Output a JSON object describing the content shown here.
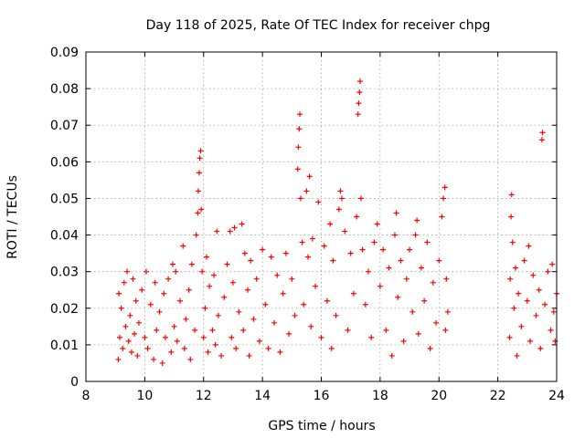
{
  "chart_data": {
    "type": "scatter",
    "title": "Day 118 of 2025, Rate Of TEC Index for receiver chpg",
    "xlabel": "GPS time / hours",
    "ylabel": "ROTI / TECUs",
    "xlim": [
      8,
      24
    ],
    "ylim": [
      0,
      0.09
    ],
    "xticks": [
      8,
      10,
      12,
      14,
      16,
      18,
      20,
      22,
      24
    ],
    "yticks": [
      0,
      0.01,
      0.02,
      0.03,
      0.04,
      0.05,
      0.06,
      0.07,
      0.08,
      0.09
    ],
    "ytick_labels": [
      "0",
      "0.01",
      "0.02",
      "0.03",
      "0.04",
      "0.05",
      "0.06",
      "0.07",
      "0.08",
      "0.09"
    ],
    "grid": true,
    "marker": "+",
    "color": "#ff0000",
    "data_gaps_hours": [
      [
        20.3,
        22.35
      ]
    ],
    "series": [
      {
        "points": [
          [
            9.1,
            0.006
          ],
          [
            9.12,
            0.024
          ],
          [
            9.15,
            0.012
          ],
          [
            9.2,
            0.02
          ],
          [
            9.25,
            0.009
          ],
          [
            9.3,
            0.027
          ],
          [
            9.35,
            0.015
          ],
          [
            9.4,
            0.03
          ],
          [
            9.45,
            0.011
          ],
          [
            9.5,
            0.018
          ],
          [
            9.55,
            0.008
          ],
          [
            9.6,
            0.028
          ],
          [
            9.65,
            0.013
          ],
          [
            9.7,
            0.022
          ],
          [
            9.75,
            0.007
          ],
          [
            9.8,
            0.016
          ],
          [
            9.9,
            0.025
          ],
          [
            10.0,
            0.012
          ],
          [
            10.05,
            0.03
          ],
          [
            10.1,
            0.009
          ],
          [
            10.2,
            0.021
          ],
          [
            10.3,
            0.006
          ],
          [
            10.35,
            0.027
          ],
          [
            10.4,
            0.014
          ],
          [
            10.5,
            0.019
          ],
          [
            10.6,
            0.005
          ],
          [
            10.65,
            0.024
          ],
          [
            10.7,
            0.012
          ],
          [
            10.8,
            0.028
          ],
          [
            10.9,
            0.008
          ],
          [
            10.95,
            0.032
          ],
          [
            11.0,
            0.015
          ],
          [
            11.05,
            0.03
          ],
          [
            11.1,
            0.011
          ],
          [
            11.2,
            0.022
          ],
          [
            11.3,
            0.037
          ],
          [
            11.35,
            0.009
          ],
          [
            11.4,
            0.017
          ],
          [
            11.5,
            0.025
          ],
          [
            11.55,
            0.006
          ],
          [
            11.6,
            0.032
          ],
          [
            11.7,
            0.014
          ],
          [
            11.75,
            0.04
          ],
          [
            11.8,
            0.046
          ],
          [
            11.82,
            0.052
          ],
          [
            11.85,
            0.057
          ],
          [
            11.87,
            0.061
          ],
          [
            11.9,
            0.063
          ],
          [
            11.92,
            0.047
          ],
          [
            11.95,
            0.03
          ],
          [
            12.0,
            0.012
          ],
          [
            12.05,
            0.02
          ],
          [
            12.1,
            0.034
          ],
          [
            12.15,
            0.008
          ],
          [
            12.2,
            0.026
          ],
          [
            12.3,
            0.014
          ],
          [
            12.35,
            0.029
          ],
          [
            12.4,
            0.01
          ],
          [
            12.45,
            0.041
          ],
          [
            12.5,
            0.018
          ],
          [
            12.6,
            0.007
          ],
          [
            12.7,
            0.023
          ],
          [
            12.8,
            0.032
          ],
          [
            12.9,
            0.041
          ],
          [
            12.95,
            0.012
          ],
          [
            13.0,
            0.027
          ],
          [
            13.05,
            0.042
          ],
          [
            13.1,
            0.009
          ],
          [
            13.2,
            0.019
          ],
          [
            13.3,
            0.043
          ],
          [
            13.35,
            0.014
          ],
          [
            13.4,
            0.035
          ],
          [
            13.5,
            0.025
          ],
          [
            13.55,
            0.007
          ],
          [
            13.6,
            0.033
          ],
          [
            13.7,
            0.017
          ],
          [
            13.8,
            0.028
          ],
          [
            13.9,
            0.011
          ],
          [
            14.0,
            0.036
          ],
          [
            14.1,
            0.021
          ],
          [
            14.2,
            0.009
          ],
          [
            14.3,
            0.034
          ],
          [
            14.4,
            0.016
          ],
          [
            14.5,
            0.029
          ],
          [
            14.6,
            0.008
          ],
          [
            14.7,
            0.024
          ],
          [
            14.8,
            0.035
          ],
          [
            14.9,
            0.013
          ],
          [
            15.0,
            0.028
          ],
          [
            15.1,
            0.018
          ],
          [
            15.2,
            0.058
          ],
          [
            15.22,
            0.064
          ],
          [
            15.25,
            0.069
          ],
          [
            15.27,
            0.073
          ],
          [
            15.3,
            0.05
          ],
          [
            15.35,
            0.038
          ],
          [
            15.4,
            0.021
          ],
          [
            15.5,
            0.052
          ],
          [
            15.55,
            0.034
          ],
          [
            15.6,
            0.056
          ],
          [
            15.65,
            0.015
          ],
          [
            15.7,
            0.039
          ],
          [
            15.8,
            0.026
          ],
          [
            15.9,
            0.049
          ],
          [
            16.0,
            0.012
          ],
          [
            16.1,
            0.037
          ],
          [
            16.2,
            0.022
          ],
          [
            16.3,
            0.043
          ],
          [
            16.35,
            0.009
          ],
          [
            16.4,
            0.033
          ],
          [
            16.5,
            0.018
          ],
          [
            16.6,
            0.047
          ],
          [
            16.65,
            0.052
          ],
          [
            16.7,
            0.05
          ],
          [
            16.8,
            0.041
          ],
          [
            16.9,
            0.014
          ],
          [
            17.0,
            0.035
          ],
          [
            17.1,
            0.024
          ],
          [
            17.2,
            0.045
          ],
          [
            17.25,
            0.073
          ],
          [
            17.27,
            0.076
          ],
          [
            17.3,
            0.079
          ],
          [
            17.32,
            0.082
          ],
          [
            17.35,
            0.05
          ],
          [
            17.4,
            0.036
          ],
          [
            17.5,
            0.021
          ],
          [
            17.6,
            0.03
          ],
          [
            17.7,
            0.012
          ],
          [
            17.8,
            0.038
          ],
          [
            17.9,
            0.043
          ],
          [
            18.0,
            0.026
          ],
          [
            18.1,
            0.036
          ],
          [
            18.2,
            0.014
          ],
          [
            18.3,
            0.031
          ],
          [
            18.4,
            0.007
          ],
          [
            18.5,
            0.04
          ],
          [
            18.55,
            0.046
          ],
          [
            18.6,
            0.023
          ],
          [
            18.7,
            0.033
          ],
          [
            18.8,
            0.011
          ],
          [
            18.9,
            0.028
          ],
          [
            19.0,
            0.036
          ],
          [
            19.1,
            0.019
          ],
          [
            19.2,
            0.04
          ],
          [
            19.25,
            0.044
          ],
          [
            19.3,
            0.013
          ],
          [
            19.4,
            0.031
          ],
          [
            19.5,
            0.022
          ],
          [
            19.6,
            0.038
          ],
          [
            19.7,
            0.009
          ],
          [
            19.8,
            0.027
          ],
          [
            19.9,
            0.016
          ],
          [
            20.0,
            0.033
          ],
          [
            20.1,
            0.045
          ],
          [
            20.15,
            0.05
          ],
          [
            20.2,
            0.053
          ],
          [
            20.22,
            0.014
          ],
          [
            20.25,
            0.028
          ],
          [
            20.3,
            0.019
          ],
          [
            22.4,
            0.012
          ],
          [
            22.42,
            0.028
          ],
          [
            22.45,
            0.045
          ],
          [
            22.47,
            0.051
          ],
          [
            22.5,
            0.038
          ],
          [
            22.55,
            0.02
          ],
          [
            22.6,
            0.031
          ],
          [
            22.65,
            0.007
          ],
          [
            22.7,
            0.024
          ],
          [
            22.8,
            0.015
          ],
          [
            22.9,
            0.033
          ],
          [
            23.0,
            0.022
          ],
          [
            23.05,
            0.037
          ],
          [
            23.1,
            0.011
          ],
          [
            23.2,
            0.029
          ],
          [
            23.3,
            0.018
          ],
          [
            23.4,
            0.025
          ],
          [
            23.45,
            0.009
          ],
          [
            23.5,
            0.066
          ],
          [
            23.52,
            0.068
          ],
          [
            23.6,
            0.021
          ],
          [
            23.7,
            0.03
          ],
          [
            23.8,
            0.014
          ],
          [
            23.85,
            0.032
          ],
          [
            23.9,
            0.019
          ],
          [
            23.95,
            0.011
          ],
          [
            24.0,
            0.024
          ]
        ]
      }
    ]
  }
}
